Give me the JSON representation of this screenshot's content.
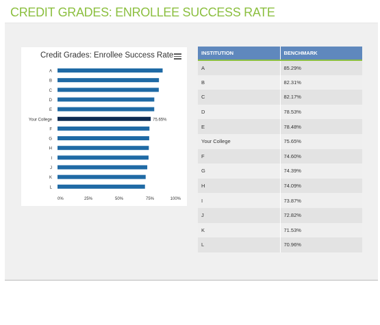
{
  "page_title": "CREDIT GRADES: ENROLLEE SUCCESS RATE",
  "table": {
    "headers": [
      "INSTITUTION",
      "BENCHMARK"
    ],
    "rows": [
      [
        "A",
        "85.29%"
      ],
      [
        "B",
        "82.31%"
      ],
      [
        "C",
        "82.17%"
      ],
      [
        "D",
        "78.53%"
      ],
      [
        "E",
        "78.48%"
      ],
      [
        "Your College",
        "75.65%"
      ],
      [
        "F",
        "74.60%"
      ],
      [
        "G",
        "74.39%"
      ],
      [
        "H",
        "74.09%"
      ],
      [
        "I",
        "73.87%"
      ],
      [
        "J",
        "72.82%"
      ],
      [
        "K",
        "71.53%"
      ],
      [
        "L",
        "70.96%"
      ]
    ]
  },
  "colors": {
    "title_green": "#8bbf3f",
    "bar": "#1f6aa5",
    "highlight_bar": "#0d2b52",
    "header_blue": "#5f88bd"
  },
  "chart_data": {
    "type": "bar",
    "orientation": "horizontal",
    "title": "Credit Grades: Enrollee Success Rate",
    "categories": [
      "A",
      "B",
      "C",
      "D",
      "E",
      "Your College",
      "F",
      "G",
      "H",
      "I",
      "J",
      "K",
      "L"
    ],
    "values": [
      85.29,
      82.31,
      82.17,
      78.53,
      78.48,
      75.65,
      74.6,
      74.39,
      74.09,
      73.87,
      72.82,
      71.53,
      70.96
    ],
    "highlight_category": "Your College",
    "highlight_label": "75.65%",
    "xlim": [
      0,
      100
    ],
    "x_ticks": [
      "0%",
      "25%",
      "50%",
      "75%",
      "100%"
    ],
    "x_tick_values": [
      0,
      25,
      50,
      75,
      100
    ],
    "grid": false,
    "legend": "none"
  }
}
